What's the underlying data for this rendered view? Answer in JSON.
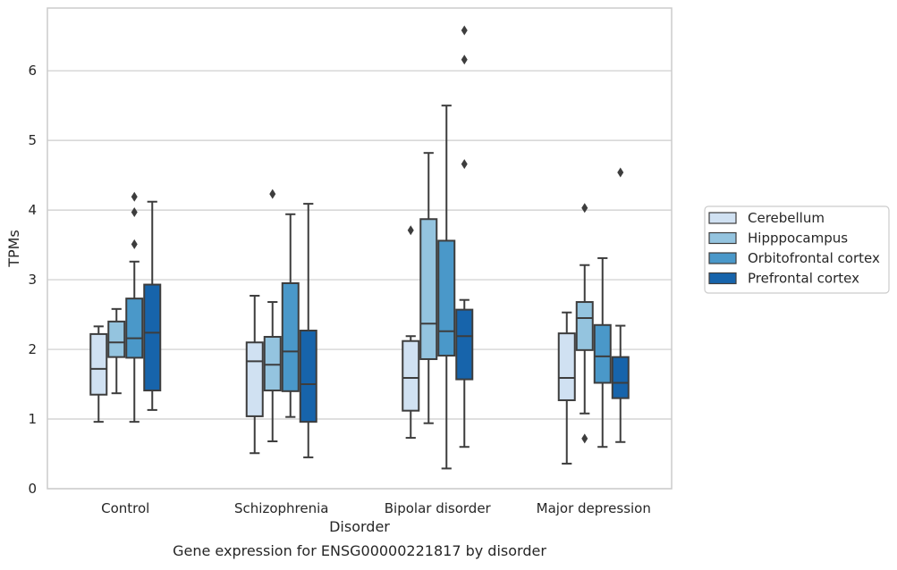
{
  "caption": "Gene expression for ENSG00000221817 by disorder",
  "chart_data": {
    "type": "boxplot",
    "xlabel": "Disorder",
    "ylabel": "TPMs",
    "ylim": [
      0,
      6.9
    ],
    "yticks": [
      0,
      1,
      2,
      3,
      4,
      5,
      6
    ],
    "grid": "horizontal",
    "legend_position": "right",
    "categories": [
      "Control",
      "Schizophrenia",
      "Bipolar disorder",
      "Major depression"
    ],
    "series": [
      {
        "name": "Cerebellum",
        "color": "#d0e1f2",
        "boxes": [
          {
            "whisker_low": 0.96,
            "q1": 1.35,
            "median": 1.72,
            "q3": 2.22,
            "whisker_high": 2.33,
            "outliers": []
          },
          {
            "whisker_low": 0.51,
            "q1": 1.04,
            "median": 1.83,
            "q3": 2.1,
            "whisker_high": 2.77,
            "outliers": []
          },
          {
            "whisker_low": 0.73,
            "q1": 1.12,
            "median": 1.59,
            "q3": 2.12,
            "whisker_high": 2.19,
            "outliers": [
              3.71
            ]
          },
          {
            "whisker_low": 0.36,
            "q1": 1.27,
            "median": 1.59,
            "q3": 2.23,
            "whisker_high": 2.53,
            "outliers": []
          }
        ]
      },
      {
        "name": "Hipppocampus",
        "color": "#94c4df",
        "boxes": [
          {
            "whisker_low": 1.37,
            "q1": 1.89,
            "median": 2.1,
            "q3": 2.4,
            "whisker_high": 2.58,
            "outliers": []
          },
          {
            "whisker_low": 0.68,
            "q1": 1.41,
            "median": 1.78,
            "q3": 2.18,
            "whisker_high": 2.68,
            "outliers": [
              4.23
            ]
          },
          {
            "whisker_low": 0.94,
            "q1": 1.86,
            "median": 2.37,
            "q3": 3.87,
            "whisker_high": 4.82,
            "outliers": []
          },
          {
            "whisker_low": 1.08,
            "q1": 1.99,
            "median": 2.45,
            "q3": 2.68,
            "whisker_high": 3.21,
            "outliers": [
              4.03,
              0.72
            ]
          }
        ]
      },
      {
        "name": "Orbitofrontal cortex",
        "color": "#4a98c9",
        "boxes": [
          {
            "whisker_low": 0.96,
            "q1": 1.88,
            "median": 2.16,
            "q3": 2.73,
            "whisker_high": 3.26,
            "outliers": [
              3.97,
              3.51,
              4.19
            ]
          },
          {
            "whisker_low": 1.03,
            "q1": 1.4,
            "median": 1.97,
            "q3": 2.95,
            "whisker_high": 3.94,
            "outliers": []
          },
          {
            "whisker_low": 0.29,
            "q1": 1.91,
            "median": 2.26,
            "q3": 3.56,
            "whisker_high": 5.5,
            "outliers": []
          },
          {
            "whisker_low": 0.6,
            "q1": 1.52,
            "median": 1.9,
            "q3": 2.35,
            "whisker_high": 3.31,
            "outliers": []
          }
        ]
      },
      {
        "name": "Prefrontal cortex",
        "color": "#1764ab",
        "boxes": [
          {
            "whisker_low": 1.13,
            "q1": 1.41,
            "median": 2.24,
            "q3": 2.93,
            "whisker_high": 4.12,
            "outliers": []
          },
          {
            "whisker_low": 0.45,
            "q1": 0.96,
            "median": 1.5,
            "q3": 2.27,
            "whisker_high": 4.09,
            "outliers": []
          },
          {
            "whisker_low": 0.6,
            "q1": 1.57,
            "median": 2.19,
            "q3": 2.57,
            "whisker_high": 2.71,
            "outliers": [
              6.58,
              6.16,
              4.66
            ]
          },
          {
            "whisker_low": 0.67,
            "q1": 1.3,
            "median": 1.52,
            "q3": 1.89,
            "whisker_high": 2.34,
            "outliers": [
              4.54
            ]
          }
        ]
      }
    ]
  }
}
